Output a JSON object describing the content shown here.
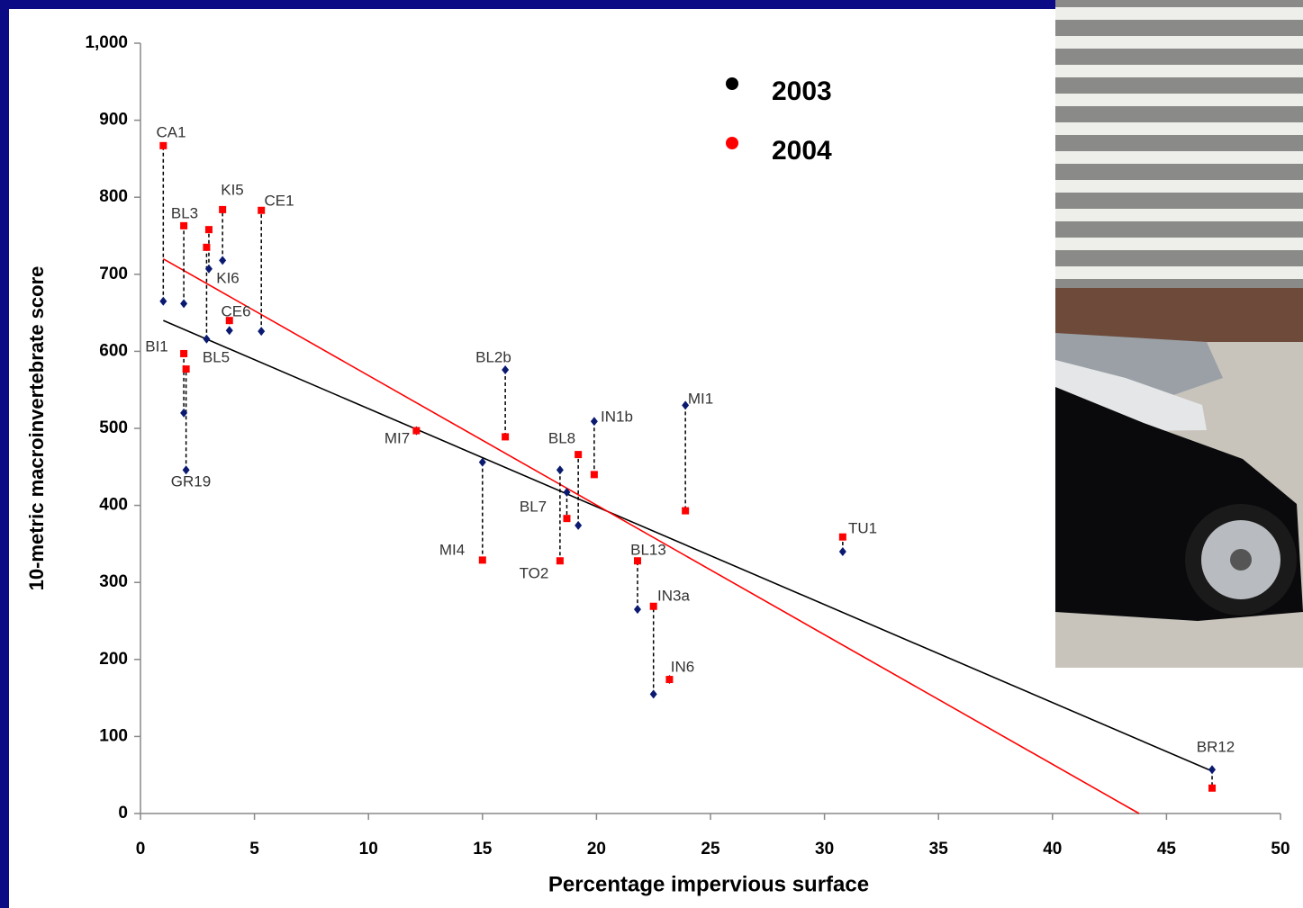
{
  "chart_data": {
    "type": "scatter",
    "x_label": "Percentage impervious surface",
    "y_label": "10-metric macroinvertebrate score",
    "categories": [
      "CA1",
      "BL3",
      "KI5",
      "KI6",
      "BL5",
      "CE1",
      "CE6",
      "BI1",
      "GR19",
      "BL2b",
      "MI7",
      "MI4",
      "IN1b",
      "BL8",
      "BL7",
      "TO2",
      "MI1",
      "BL13",
      "IN3a",
      "IN6",
      "TU1",
      "BR12"
    ],
    "x": [
      1.0,
      1.9,
      3.6,
      3.0,
      2.9,
      5.3,
      3.9,
      1.9,
      2.0,
      16.0,
      12.1,
      15.0,
      19.9,
      19.2,
      18.7,
      18.4,
      23.9,
      21.8,
      22.5,
      23.2,
      30.8,
      47.0
    ],
    "series": [
      {
        "name": "2003",
        "color": "#000000",
        "marker_color": "#0a1a70",
        "values": [
          665,
          662,
          718,
          707,
          616,
          626,
          627,
          520,
          446,
          576,
          497,
          456,
          509,
          374,
          417,
          446,
          530,
          265,
          155,
          174,
          340,
          57
        ],
        "trend_x": [
          1,
          47
        ],
        "trend_values": [
          640,
          55
        ]
      },
      {
        "name": "2004",
        "color": "#ff0000",
        "marker_color": "#ff0000",
        "values": [
          867,
          763,
          784,
          758,
          735,
          783,
          640,
          597,
          577,
          489,
          497,
          329,
          440,
          466,
          383,
          328,
          393,
          328,
          269,
          174,
          359,
          33
        ],
        "trend_x": [
          1,
          43.8
        ],
        "trend_values": [
          720,
          0
        ]
      }
    ],
    "xlim": [
      0,
      50
    ],
    "xticks": [
      0,
      5,
      10,
      15,
      20,
      25,
      30,
      35,
      40,
      45,
      50
    ],
    "ylim": [
      0,
      1000
    ],
    "yticks": [
      0,
      100,
      200,
      300,
      400,
      500,
      600,
      700,
      800,
      900,
      {
        "value": 1000,
        "label": "1,000"
      }
    ]
  }
}
